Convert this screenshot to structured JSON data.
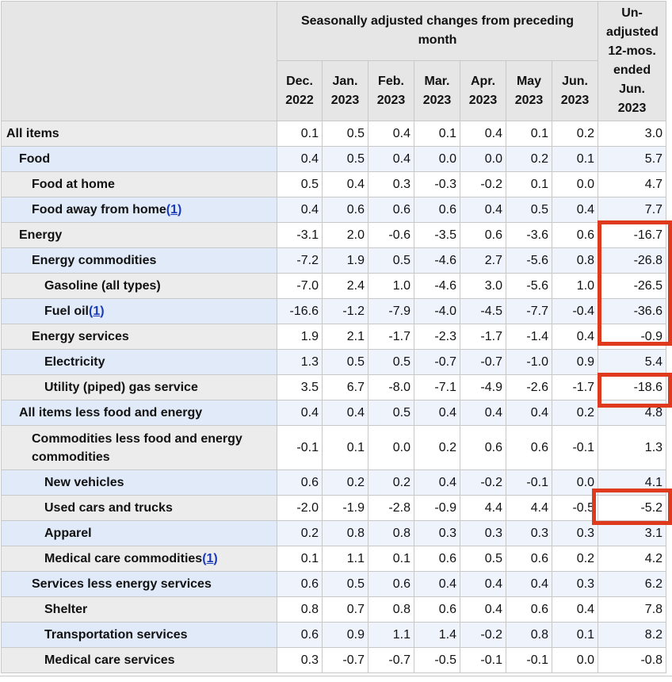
{
  "header": {
    "group_label": "Seasonally adjusted changes from preceding month",
    "unadjusted_label": "Un-adjusted 12-mos. ended Jun. 2023",
    "months": [
      {
        "line1": "Dec.",
        "line2": "2022"
      },
      {
        "line1": "Jan.",
        "line2": "2023"
      },
      {
        "line1": "Feb.",
        "line2": "2023"
      },
      {
        "line1": "Mar.",
        "line2": "2023"
      },
      {
        "line1": "Apr.",
        "line2": "2023"
      },
      {
        "line1": "May",
        "line2": "2023"
      },
      {
        "line1": "Jun.",
        "line2": "2023"
      }
    ]
  },
  "rows": [
    {
      "name": "All items",
      "level": 0,
      "footnote": "",
      "values": [
        "0.1",
        "0.5",
        "0.4",
        "0.1",
        "0.4",
        "0.1",
        "0.2",
        "3.0"
      ]
    },
    {
      "name": "Food",
      "level": 1,
      "footnote": "",
      "values": [
        "0.4",
        "0.5",
        "0.4",
        "0.0",
        "0.0",
        "0.2",
        "0.1",
        "5.7"
      ]
    },
    {
      "name": "Food at home",
      "level": 2,
      "footnote": "",
      "values": [
        "0.5",
        "0.4",
        "0.3",
        "-0.3",
        "-0.2",
        "0.1",
        "0.0",
        "4.7"
      ]
    },
    {
      "name": "Food away from home",
      "level": 2,
      "footnote": "1",
      "values": [
        "0.4",
        "0.6",
        "0.6",
        "0.6",
        "0.4",
        "0.5",
        "0.4",
        "7.7"
      ]
    },
    {
      "name": "Energy",
      "level": 1,
      "footnote": "",
      "values": [
        "-3.1",
        "2.0",
        "-0.6",
        "-3.5",
        "0.6",
        "-3.6",
        "0.6",
        "-16.7"
      ]
    },
    {
      "name": "Energy commodities",
      "level": 2,
      "footnote": "",
      "values": [
        "-7.2",
        "1.9",
        "0.5",
        "-4.6",
        "2.7",
        "-5.6",
        "0.8",
        "-26.8"
      ]
    },
    {
      "name": "Gasoline (all types)",
      "level": 3,
      "footnote": "",
      "values": [
        "-7.0",
        "2.4",
        "1.0",
        "-4.6",
        "3.0",
        "-5.6",
        "1.0",
        "-26.5"
      ]
    },
    {
      "name": "Fuel oil",
      "level": 3,
      "footnote": "1",
      "values": [
        "-16.6",
        "-1.2",
        "-7.9",
        "-4.0",
        "-4.5",
        "-7.7",
        "-0.4",
        "-36.6"
      ]
    },
    {
      "name": "Energy services",
      "level": 2,
      "footnote": "",
      "values": [
        "1.9",
        "2.1",
        "-1.7",
        "-2.3",
        "-1.7",
        "-1.4",
        "0.4",
        "-0.9"
      ]
    },
    {
      "name": "Electricity",
      "level": 3,
      "footnote": "",
      "values": [
        "1.3",
        "0.5",
        "0.5",
        "-0.7",
        "-0.7",
        "-1.0",
        "0.9",
        "5.4"
      ]
    },
    {
      "name": "Utility (piped) gas service",
      "level": 3,
      "footnote": "",
      "values": [
        "3.5",
        "6.7",
        "-8.0",
        "-7.1",
        "-4.9",
        "-2.6",
        "-1.7",
        "-18.6"
      ]
    },
    {
      "name": "All items less food and energy",
      "level": 1,
      "footnote": "",
      "values": [
        "0.4",
        "0.4",
        "0.5",
        "0.4",
        "0.4",
        "0.4",
        "0.2",
        "4.8"
      ]
    },
    {
      "name": "Commodities less food and energy commodities",
      "level": 2,
      "footnote": "",
      "values": [
        "-0.1",
        "0.1",
        "0.0",
        "0.2",
        "0.6",
        "0.6",
        "-0.1",
        "1.3"
      ]
    },
    {
      "name": "New vehicles",
      "level": 3,
      "footnote": "",
      "values": [
        "0.6",
        "0.2",
        "0.2",
        "0.4",
        "-0.2",
        "-0.1",
        "0.0",
        "4.1"
      ]
    },
    {
      "name": "Used cars and trucks",
      "level": 3,
      "footnote": "",
      "values": [
        "-2.0",
        "-1.9",
        "-2.8",
        "-0.9",
        "4.4",
        "4.4",
        "-0.5",
        "-5.2"
      ]
    },
    {
      "name": "Apparel",
      "level": 3,
      "footnote": "",
      "values": [
        "0.2",
        "0.8",
        "0.8",
        "0.3",
        "0.3",
        "0.3",
        "0.3",
        "3.1"
      ]
    },
    {
      "name": "Medical care commodities",
      "level": 3,
      "footnote": "1",
      "values": [
        "0.1",
        "1.1",
        "0.1",
        "0.6",
        "0.5",
        "0.6",
        "0.2",
        "4.2"
      ]
    },
    {
      "name": "Services less energy services",
      "level": 2,
      "footnote": "",
      "values": [
        "0.6",
        "0.5",
        "0.6",
        "0.4",
        "0.4",
        "0.4",
        "0.3",
        "6.2"
      ]
    },
    {
      "name": "Shelter",
      "level": 3,
      "footnote": "",
      "values": [
        "0.8",
        "0.7",
        "0.8",
        "0.6",
        "0.4",
        "0.6",
        "0.4",
        "7.8"
      ]
    },
    {
      "name": "Transportation services",
      "level": 3,
      "footnote": "",
      "values": [
        "0.6",
        "0.9",
        "1.1",
        "1.4",
        "-0.2",
        "0.8",
        "0.1",
        "8.2"
      ]
    },
    {
      "name": "Medical care services",
      "level": 3,
      "footnote": "",
      "values": [
        "0.3",
        "-0.7",
        "-0.7",
        "-0.5",
        "-0.1",
        "-0.1",
        "0.0",
        "-0.8"
      ]
    }
  ],
  "highlight_color": "#e03a1e"
}
